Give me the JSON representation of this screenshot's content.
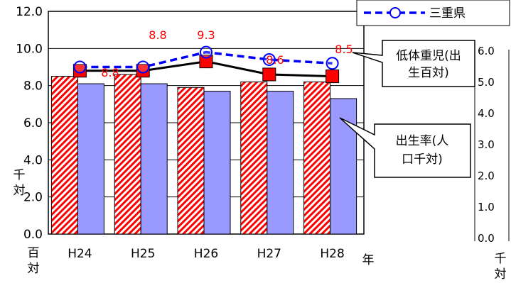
{
  "chart_data": {
    "type": "bar",
    "categories": [
      "H24",
      "H25",
      "H26",
      "H27",
      "H28"
    ],
    "ylim": [
      0,
      12
    ],
    "y_ticks": [
      "0.0",
      "2.0",
      "4.0",
      "6.0",
      "8.0",
      "10.0",
      "12.0"
    ],
    "right_ylim": [
      0,
      6
    ],
    "right_ticks": [
      "0.0",
      "1.0",
      "2.0",
      "3.0",
      "4.0",
      "5.0",
      "6.0"
    ],
    "grid": true,
    "legend": {
      "placement": "top-right",
      "entries": [
        "三重県"
      ]
    },
    "series": [
      {
        "name": "出生率(人口千対)",
        "kind": "bar",
        "pattern": "hatch",
        "color": "#ff0000",
        "values": [
          8.5,
          8.6,
          7.9,
          8.2,
          8.2
        ]
      },
      {
        "name": "三重県",
        "kind": "bar",
        "color": "#9999ff",
        "values": [
          8.1,
          8.1,
          7.7,
          7.7,
          7.3
        ]
      },
      {
        "name": "低体重児(出生百対)",
        "kind": "line",
        "marker": "square",
        "color": "#ff0000",
        "values": [
          8.8,
          8.8,
          9.3,
          8.6,
          8.5
        ],
        "labels": [
          "8.8",
          "8.8",
          "9.3",
          "8.6",
          "8.5"
        ]
      },
      {
        "name": "三重県",
        "kind": "line",
        "marker": "circle",
        "style": "dashed",
        "color": "#0000ff",
        "values": [
          9.0,
          9.0,
          9.8,
          9.4,
          9.2
        ]
      }
    ],
    "callouts": [
      {
        "lines": [
          "低体重児(出",
          "生百対)"
        ]
      },
      {
        "lines": [
          "出生率(人",
          "口千対)"
        ]
      }
    ],
    "unit_labels": {
      "left_mid": "千\n対",
      "left_bottom": "百\n対",
      "x_unit": "年",
      "right_bottom": "千\n対"
    }
  },
  "colors": {
    "red": "#ff0000",
    "blue": "#0000ff",
    "bar_blue": "#9999ff"
  }
}
